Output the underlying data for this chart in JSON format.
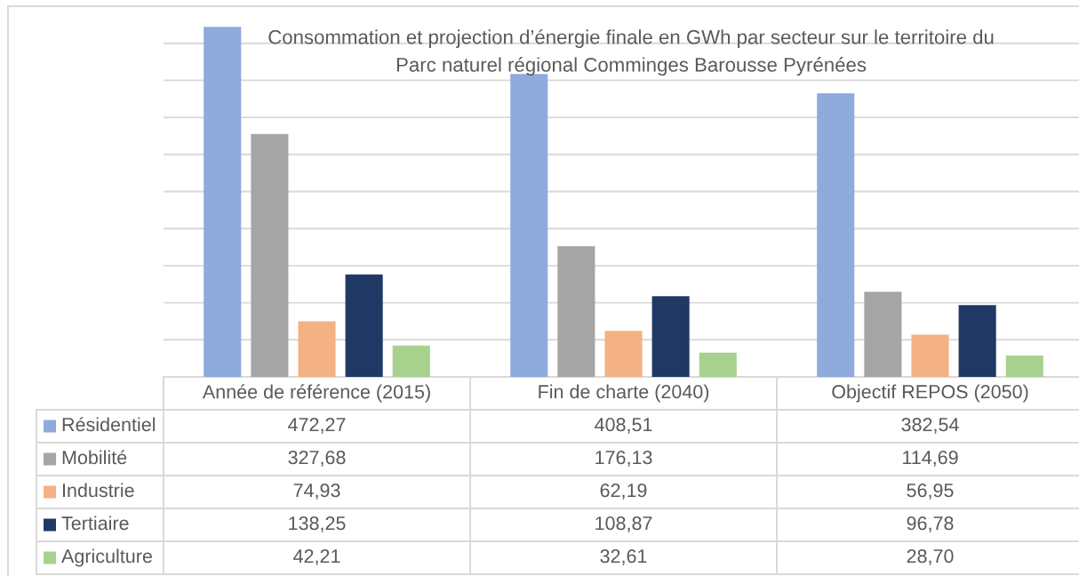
{
  "chart_data": {
    "type": "bar",
    "title": "Consommation et projection d’énergie finale en GWh par secteur sur le territoire du\nParc naturel régional Comminges Barousse Pyrénées",
    "categories": [
      "Année de référence (2015)",
      "Fin de charte (2040)",
      "Objectif REPOS (2050)"
    ],
    "series": [
      {
        "name": "Résidentiel",
        "color": "#8faadc",
        "values": [
          472.27,
          408.51,
          382.54
        ],
        "value_labels": [
          "472,27",
          "408,51",
          "382,54"
        ]
      },
      {
        "name": "Mobilité",
        "color": "#a5a5a5",
        "values": [
          327.68,
          176.13,
          114.69
        ],
        "value_labels": [
          "327,68",
          "176,13",
          "114,69"
        ]
      },
      {
        "name": "Industrie",
        "color": "#f4b183",
        "values": [
          74.93,
          62.19,
          56.95
        ],
        "value_labels": [
          "74,93",
          "62,19",
          "56,95"
        ]
      },
      {
        "name": "Tertiaire",
        "color": "#203864",
        "values": [
          138.25,
          108.87,
          96.78
        ],
        "value_labels": [
          "138,25",
          "108,87",
          "96,78"
        ]
      },
      {
        "name": "Agriculture",
        "color": "#a9d18e",
        "values": [
          42.21,
          32.61,
          28.7
        ],
        "value_labels": [
          "42,21",
          "32,61",
          "28,70"
        ]
      }
    ],
    "ylim": [
      0,
      500
    ],
    "yticks": [
      {
        "value": 0,
        "label": null
      },
      {
        "value": 50,
        "label": null
      },
      {
        "value": 100,
        "label": null
      },
      {
        "value": 150,
        "label": null
      },
      {
        "value": 200,
        "label": null
      },
      {
        "value": 250,
        "label": null
      },
      {
        "value": 300,
        "label": null
      },
      {
        "value": 350,
        "label": null
      },
      {
        "value": 400,
        "label": null
      },
      {
        "value": 450,
        "label": null
      },
      {
        "value": 500,
        "label": null
      }
    ],
    "grid": "y",
    "legend": "bottom",
    "tick_labels": "x"
  }
}
